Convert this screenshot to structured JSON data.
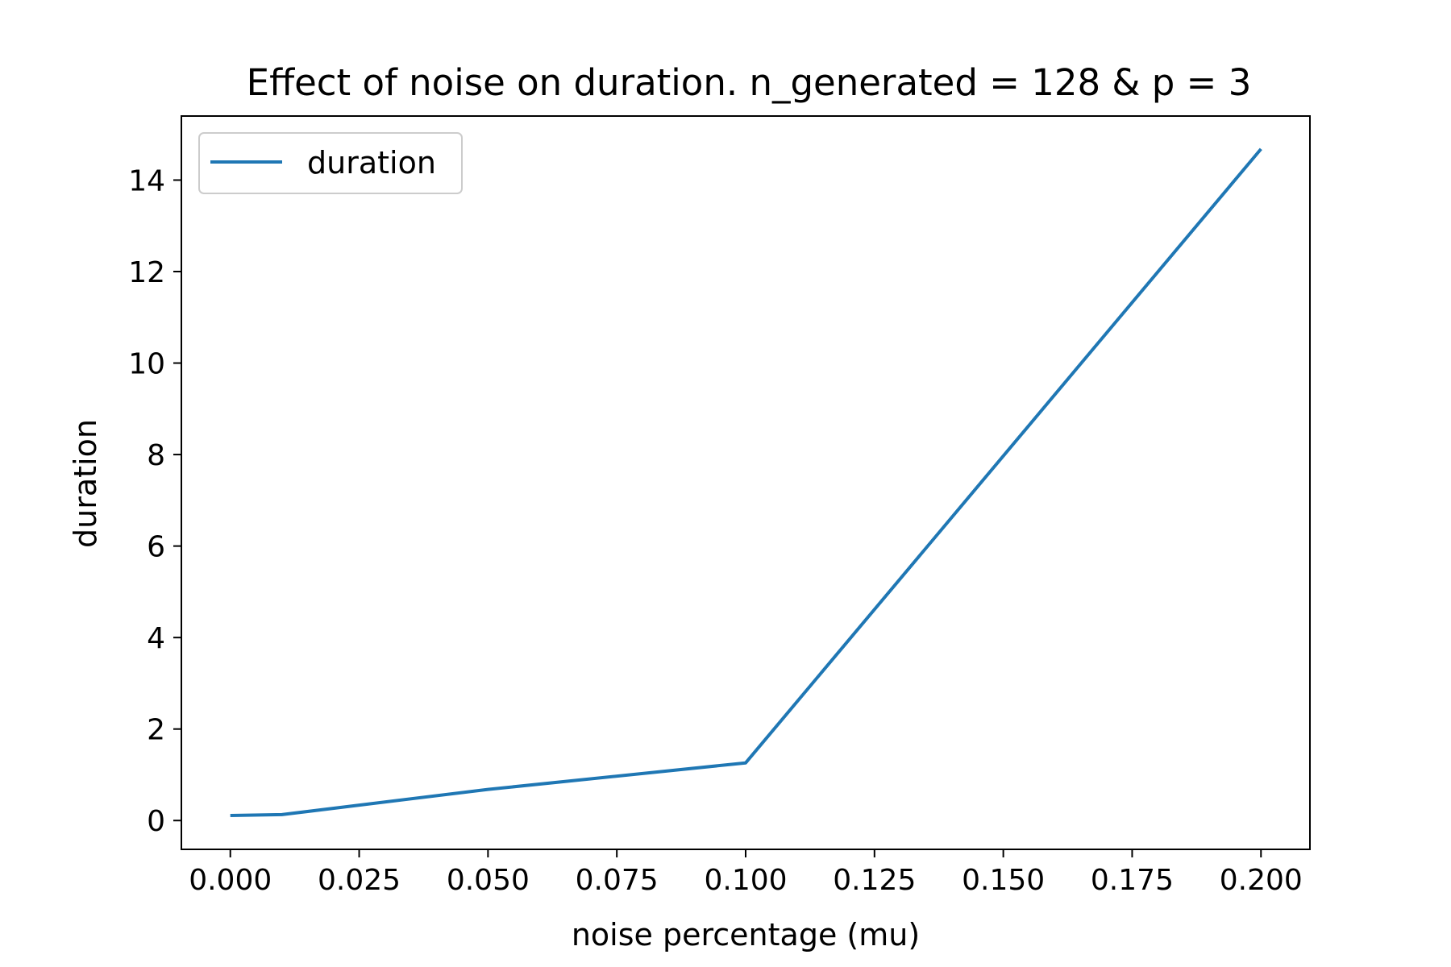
{
  "chart_data": {
    "type": "line",
    "title": "Effect of noise on duration. n_generated = 128 & p = 3",
    "xlabel": "noise percentage (mu)",
    "ylabel": "duration",
    "xlim": [
      -0.0095,
      0.2095
    ],
    "ylim": [
      -0.63,
      15.4
    ],
    "xticks": [
      "0.000",
      "0.025",
      "0.050",
      "0.075",
      "0.100",
      "0.125",
      "0.150",
      "0.175",
      "0.200"
    ],
    "yticks": [
      "0",
      "2",
      "4",
      "6",
      "8",
      "10",
      "12",
      "14"
    ],
    "grid": false,
    "legend_position": "upper left",
    "series": [
      {
        "name": "duration",
        "color": "#1f77b4",
        "x": [
          0.0,
          0.01,
          0.05,
          0.1,
          0.2
        ],
        "y": [
          0.11,
          0.13,
          0.68,
          1.26,
          14.68
        ]
      }
    ]
  }
}
